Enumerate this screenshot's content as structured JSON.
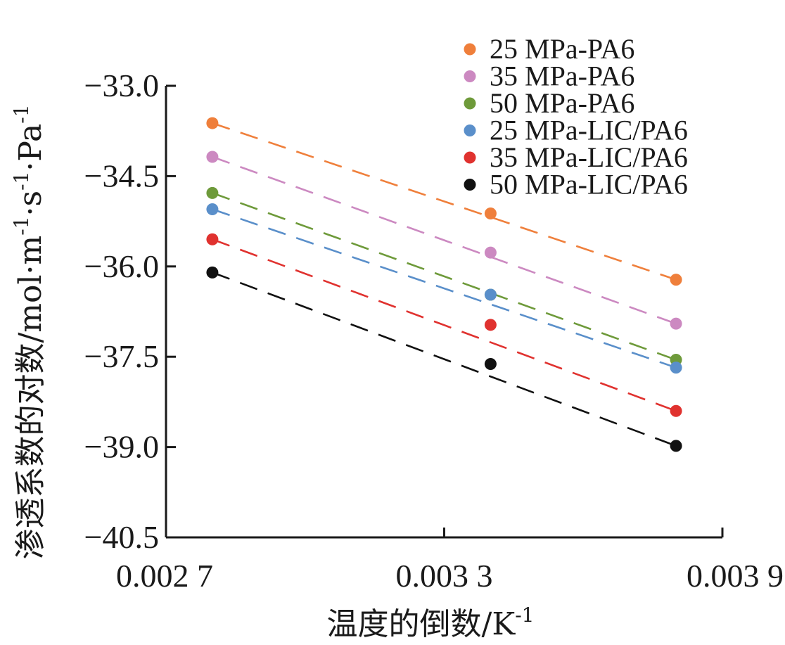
{
  "chart_data": {
    "type": "scatter",
    "xlabel": "温度的倒数/K",
    "xlabel_sup": "-1",
    "ylabel": "渗透系数的对数/mol·m",
    "ylabel_sup1": "-1",
    "ylabel_mid1": "·s",
    "ylabel_sup2": "-1",
    "ylabel_mid2": "·Pa",
    "ylabel_sup3": "-1",
    "xlim": [
      0.0027,
      0.0039
    ],
    "ylim": [
      -40.5,
      -33.0
    ],
    "x_ticks": [
      0.0027,
      0.0033,
      0.0039
    ],
    "x_tick_labels": [
      "0.002 7",
      "0.003 3",
      "0.003 9"
    ],
    "y_ticks": [
      -33.0,
      -34.5,
      -36.0,
      -37.5,
      -39.0,
      -40.5
    ],
    "y_tick_labels": [
      "−33.0",
      "−34.5",
      "−36.0",
      "−37.5",
      "−39.0",
      "−40.5"
    ],
    "grid": false,
    "legend_position": "top-right",
    "series": [
      {
        "name": "25 MPa-PA6",
        "color": "#ef7f3b",
        "x": [
          0.0028,
          0.0034,
          0.0038
        ],
        "y": [
          -33.62,
          -35.12,
          -36.22
        ],
        "fit": [
          [
            0.0028,
            -33.62
          ],
          [
            0.0038,
            -36.22
          ]
        ]
      },
      {
        "name": "35 MPa-PA6",
        "color": "#cc89c1",
        "x": [
          0.0028,
          0.0034,
          0.0038
        ],
        "y": [
          -34.18,
          -35.77,
          -36.95
        ],
        "fit": [
          [
            0.0028,
            -34.18
          ],
          [
            0.0038,
            -36.95
          ]
        ]
      },
      {
        "name": "50 MPa-PA6",
        "color": "#6e9a3a",
        "x": [
          0.0028,
          0.0034,
          0.0038
        ],
        "y": [
          -34.78,
          -36.47,
          -37.55
        ],
        "fit": [
          [
            0.0028,
            -34.78
          ],
          [
            0.0038,
            -37.55
          ]
        ]
      },
      {
        "name": "25 MPa-LIC/PA6",
        "color": "#5a8fca",
        "x": [
          0.0028,
          0.0034,
          0.0038
        ],
        "y": [
          -35.05,
          -36.47,
          -37.68
        ],
        "fit": [
          [
            0.0028,
            -35.05
          ],
          [
            0.0038,
            -37.68
          ]
        ]
      },
      {
        "name": "35 MPa-LIC/PA6",
        "color": "#e0322f",
        "x": [
          0.0028,
          0.0034,
          0.0038
        ],
        "y": [
          -35.55,
          -36.97,
          -38.4
        ],
        "fit": [
          [
            0.0028,
            -35.55
          ],
          [
            0.0038,
            -38.4
          ]
        ]
      },
      {
        "name": "50 MPa-LIC/PA6",
        "color": "#111111",
        "x": [
          0.0028,
          0.0034,
          0.0038
        ],
        "y": [
          -36.1,
          -37.62,
          -38.98
        ],
        "fit": [
          [
            0.0028,
            -36.1
          ],
          [
            0.0038,
            -38.98
          ]
        ]
      }
    ]
  }
}
